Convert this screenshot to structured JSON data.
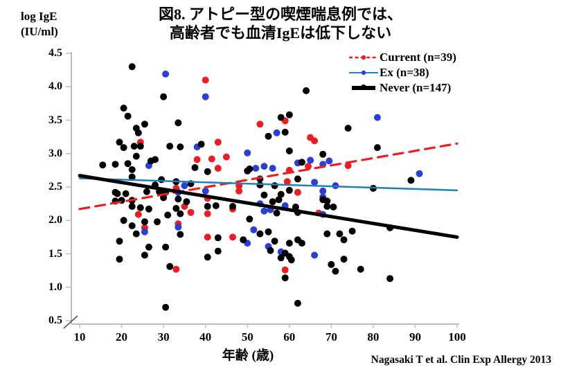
{
  "header": {
    "title_line1": "図8. アトピー型の喫煙喘息例では、",
    "title_line2": "高齢者でも血清IgEは低下しない"
  },
  "y_axis_label": {
    "line1": "log IgE",
    "line2": "(IU/ml)"
  },
  "x_axis_label": "年齢 (歳)",
  "citation": "Nagasaki T et al. Clin Exp Allergy 2013",
  "colors": {
    "current_red": "#ee1c23",
    "ex_point_blue": "#2b3fd6",
    "ex_line_blue": "#1d82bc",
    "never_black": "#000000",
    "axis_gray": "#a6a6a6",
    "tick_gray": "#bfbfbf",
    "break_slash": "#555555"
  },
  "chart_data": {
    "type": "scatter",
    "title": "図8. アトピー型の喫煙喘息例では、高齢者でも血清IgEは低下しない",
    "xlabel": "年齢 (歳)",
    "ylabel": "log IgE (IU/ml)",
    "xlim": [
      10,
      100
    ],
    "ylim": [
      0.5,
      4.5
    ],
    "grid": false,
    "axis_break_bottom_left": true,
    "legend_position": "top-right",
    "x_ticks": [
      "10",
      "20",
      "30",
      "40",
      "50",
      "60",
      "70",
      "80",
      "90",
      "100"
    ],
    "y_ticks": [
      "4.5",
      "4.0",
      "3.5",
      "3.0",
      "2.5",
      "2.0",
      "1.5",
      "1.0",
      "0.5"
    ],
    "series": [
      {
        "name": "Current (n=39)",
        "n": 39,
        "point_color": "#ee1c23",
        "line_color": "#ee1c23",
        "line_style": "dashed",
        "line_width": 3.2,
        "trendline": {
          "x0": 10,
          "y0": 2.17,
          "x1": 100,
          "y1": 3.15
        },
        "points": [
          [
            40,
            4.1
          ],
          [
            24.5,
            3.17
          ],
          [
            43,
            3.17
          ],
          [
            38,
            2.91
          ],
          [
            41.5,
            2.92
          ],
          [
            43,
            2.78
          ],
          [
            33,
            2.48
          ],
          [
            59,
            3.49
          ],
          [
            53,
            3.44
          ],
          [
            65,
            3.24
          ],
          [
            66,
            3.19
          ],
          [
            45,
            2.95
          ],
          [
            64.5,
            2.81
          ],
          [
            60,
            2.75
          ],
          [
            74,
            2.82
          ],
          [
            59.5,
            2.58
          ],
          [
            48,
            2.52
          ],
          [
            40.5,
            2.33
          ],
          [
            35,
            2.21
          ],
          [
            36.5,
            2.12
          ],
          [
            40.5,
            2.1
          ],
          [
            24,
            2.09
          ],
          [
            33.5,
            1.95
          ],
          [
            40.5,
            1.75
          ],
          [
            25.5,
            1.89
          ],
          [
            33,
            1.27
          ],
          [
            48,
            2.44
          ],
          [
            62,
            2.42
          ],
          [
            46.5,
            2.17
          ],
          [
            67,
            2.11
          ],
          [
            46.5,
            1.75
          ],
          [
            59,
            1.26
          ]
        ]
      },
      {
        "name": "Ex (n=38)",
        "n": 38,
        "point_color": "#2b3fd6",
        "line_color": "#1d82bc",
        "line_style": "solid",
        "line_width": 2.5,
        "trendline": {
          "x0": 10,
          "y0": 2.63,
          "x1": 100,
          "y1": 2.45
        },
        "points": [
          [
            30.5,
            4.19
          ],
          [
            40,
            3.85
          ],
          [
            38,
            3.1
          ],
          [
            26.5,
            2.82
          ],
          [
            35,
            2.52
          ],
          [
            57,
            3.31
          ],
          [
            50,
            3.01
          ],
          [
            52,
            2.78
          ],
          [
            54,
            2.81
          ],
          [
            56,
            2.78
          ],
          [
            62,
            2.86
          ],
          [
            65,
            2.9
          ],
          [
            68,
            2.84
          ],
          [
            69.5,
            2.89
          ],
          [
            66,
            2.57
          ],
          [
            71,
            2.52
          ],
          [
            81,
            3.54
          ],
          [
            91,
            2.7
          ],
          [
            33.5,
            2.42
          ],
          [
            40,
            2.44
          ],
          [
            33.5,
            1.9
          ],
          [
            25.5,
            1.83
          ],
          [
            68,
            2.44
          ],
          [
            53,
            2.25
          ],
          [
            55.5,
            2.16
          ],
          [
            54,
            2.14
          ],
          [
            59,
            2.22
          ],
          [
            68,
            2.09
          ],
          [
            51.5,
            1.86
          ],
          [
            50,
            1.66
          ],
          [
            55,
            1.61
          ],
          [
            58,
            1.53
          ],
          [
            66,
            1.48
          ],
          [
            68,
            2.35
          ]
        ]
      },
      {
        "name": "Never (n=147)",
        "n": 147,
        "point_color": "#000000",
        "line_color": "#000000",
        "line_style": "solid",
        "line_width": 5,
        "trendline": {
          "x0": 10,
          "y0": 2.67,
          "x1": 100,
          "y1": 1.75
        },
        "points": [
          [
            22.5,
            4.3
          ],
          [
            30,
            3.85
          ],
          [
            20.5,
            3.68
          ],
          [
            21.5,
            3.56
          ],
          [
            25.5,
            3.44
          ],
          [
            33.5,
            3.46
          ],
          [
            23.5,
            3.38
          ],
          [
            24,
            3.31
          ],
          [
            19.5,
            3.17
          ],
          [
            23,
            3.11
          ],
          [
            24.5,
            3.11
          ],
          [
            20.5,
            3.09
          ],
          [
            31.5,
            3.11
          ],
          [
            34,
            3.1
          ],
          [
            39,
            3.14
          ],
          [
            37.5,
            2.79
          ],
          [
            23.5,
            2.96
          ],
          [
            27,
            2.89
          ],
          [
            28,
            2.91
          ],
          [
            15.5,
            2.83
          ],
          [
            18.5,
            2.84
          ],
          [
            21.5,
            2.85
          ],
          [
            22.5,
            2.76
          ],
          [
            40.5,
            2.73
          ],
          [
            22.5,
            2.65
          ],
          [
            29.5,
            2.61
          ],
          [
            33,
            2.58
          ],
          [
            28,
            2.53
          ],
          [
            36.5,
            2.55
          ],
          [
            26,
            2.43
          ],
          [
            64,
            3.94
          ],
          [
            58,
            3.54
          ],
          [
            60,
            3.58
          ],
          [
            59,
            3.32
          ],
          [
            55,
            3.26
          ],
          [
            74,
            3.38
          ],
          [
            60,
            3.04
          ],
          [
            68,
            2.99
          ],
          [
            50,
            2.74
          ],
          [
            50.5,
            2.77
          ],
          [
            63,
            2.87
          ],
          [
            53,
            2.62
          ],
          [
            62,
            2.62
          ],
          [
            56.5,
            2.52
          ],
          [
            53,
            2.53
          ],
          [
            81,
            3.09
          ],
          [
            89,
            2.6
          ],
          [
            80,
            2.48
          ],
          [
            18.5,
            2.42
          ],
          [
            19,
            2.4
          ],
          [
            21,
            2.4
          ],
          [
            29,
            2.43
          ],
          [
            30.5,
            2.42
          ],
          [
            30,
            2.34
          ],
          [
            33.5,
            2.32
          ],
          [
            35.5,
            2.28
          ],
          [
            18.5,
            2.29
          ],
          [
            20,
            2.3
          ],
          [
            22.5,
            2.3
          ],
          [
            22.5,
            2.21
          ],
          [
            24.5,
            2.19
          ],
          [
            26.5,
            2.17
          ],
          [
            33,
            2.18
          ],
          [
            34,
            2.1
          ],
          [
            40.5,
            2.21
          ],
          [
            42.5,
            2.22
          ],
          [
            20.5,
            2.0
          ],
          [
            22.5,
            1.92
          ],
          [
            25.5,
            1.98
          ],
          [
            28.5,
            1.98
          ],
          [
            31,
            2.08
          ],
          [
            34,
            1.79
          ],
          [
            43,
            1.74
          ],
          [
            23.5,
            1.8
          ],
          [
            19.5,
            1.69
          ],
          [
            26.5,
            1.6
          ],
          [
            30.5,
            1.6
          ],
          [
            25.5,
            1.48
          ],
          [
            19.5,
            1.42
          ],
          [
            40.5,
            1.45
          ],
          [
            31.5,
            1.31
          ],
          [
            43,
            1.54
          ],
          [
            30.5,
            0.7
          ],
          [
            54,
            2.38
          ],
          [
            58,
            2.39
          ],
          [
            60,
            2.45
          ],
          [
            46.5,
            2.21
          ],
          [
            56,
            2.28
          ],
          [
            57,
            2.11
          ],
          [
            57.5,
            2.31
          ],
          [
            61.5,
            2.2
          ],
          [
            62,
            2.12
          ],
          [
            68,
            2.31
          ],
          [
            69,
            2.29
          ],
          [
            69,
            2.21
          ],
          [
            70.5,
            2.2
          ],
          [
            50.5,
            2.02
          ],
          [
            53,
            1.8
          ],
          [
            55,
            1.83
          ],
          [
            49,
            1.71
          ],
          [
            56.5,
            1.69
          ],
          [
            55.5,
            1.55
          ],
          [
            60,
            1.66
          ],
          [
            62,
            1.71
          ],
          [
            63,
            1.66
          ],
          [
            59,
            1.51
          ],
          [
            58,
            1.44
          ],
          [
            60,
            1.46
          ],
          [
            60.5,
            1.41
          ],
          [
            69,
            1.8
          ],
          [
            72,
            1.8
          ],
          [
            73,
            1.71
          ],
          [
            73,
            1.42
          ],
          [
            70,
            1.34
          ],
          [
            71,
            1.24
          ],
          [
            59,
            1.14
          ],
          [
            62,
            0.76
          ],
          [
            84,
            1.89
          ],
          [
            77,
            1.27
          ],
          [
            84,
            1.13
          ],
          [
            75,
            1.84
          ]
        ]
      }
    ]
  }
}
